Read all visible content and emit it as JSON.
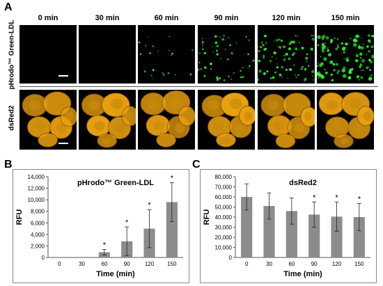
{
  "panel_a": {
    "letter": "A",
    "times": [
      "0 min",
      "30 min",
      "60 min",
      "90 min",
      "120 min",
      "150 min"
    ],
    "row_top_label": "pHrodo™ Green-LDL",
    "row_bottom_label": "dsRed2",
    "green_level": [
      0,
      0,
      0.15,
      0.35,
      0.6,
      0.85
    ],
    "colors": {
      "green": "#33ff33",
      "orange": "#e8a010",
      "background": "#000000"
    }
  },
  "chart_data": [
    {
      "type": "bar",
      "panel": "B",
      "title": "pHrodo™ Green-LDL",
      "xlabel": "Time (min)",
      "ylabel": "RFU",
      "categories": [
        "0",
        "30",
        "60",
        "90",
        "120",
        "150"
      ],
      "values": [
        0,
        0,
        900,
        2800,
        5000,
        9600
      ],
      "errors": [
        0,
        0,
        500,
        2500,
        3300,
        3400
      ],
      "significant": [
        "",
        "",
        "*",
        "*",
        "*",
        "*"
      ],
      "ylim": [
        0,
        14000
      ],
      "yticks": [
        "0",
        "2,000",
        "4,000",
        "6,000",
        "8,000",
        "10,000",
        "12,000",
        "14,000"
      ],
      "ytick_values": [
        0,
        2000,
        4000,
        6000,
        8000,
        10000,
        12000,
        14000
      ],
      "bar_color": "#8c8c8c"
    },
    {
      "type": "bar",
      "panel": "C",
      "title": "dsRed2",
      "xlabel": "Time (min)",
      "ylabel": "RFU",
      "categories": [
        "0",
        "30",
        "60",
        "90",
        "120",
        "150"
      ],
      "values": [
        60000,
        51000,
        46000,
        42500,
        40500,
        40000
      ],
      "errors": [
        13000,
        13000,
        13000,
        12500,
        14500,
        13500
      ],
      "significant": [
        "",
        "",
        "",
        "*",
        "*",
        "*"
      ],
      "ylim": [
        0,
        80000
      ],
      "yticks": [
        "0",
        "10,000",
        "20,000",
        "30,000",
        "40,000",
        "50,000",
        "60,000",
        "70,000",
        "80,000"
      ],
      "ytick_values": [
        0,
        10000,
        20000,
        30000,
        40000,
        50000,
        60000,
        70000,
        80000
      ],
      "bar_color": "#8c8c8c"
    }
  ]
}
